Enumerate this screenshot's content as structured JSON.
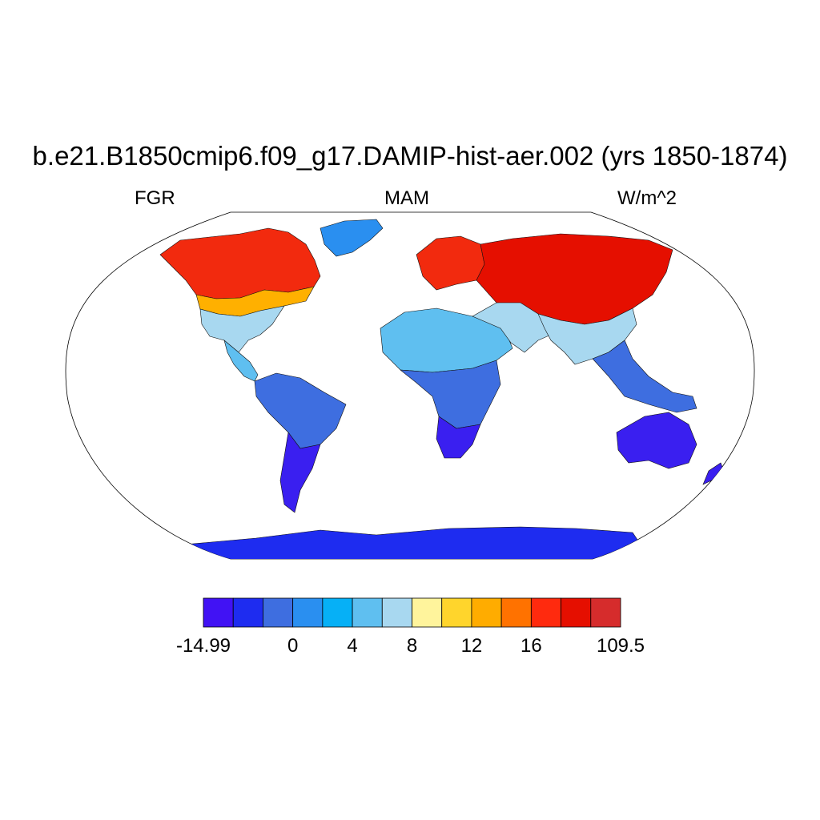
{
  "title": "b.e21.B1850cmip6.f09_g17.DAMIP-hist-aer.002 (yrs 1850-1874)",
  "subtitle_left": "FGR",
  "subtitle_center": "MAM",
  "subtitle_right": "W/m^2",
  "colors": {
    "land_regions": {
      "north_america_high": "#f22a0e",
      "north_america_mid": "#ffb000",
      "usa_south": "#a8d8f0",
      "central_america": "#5fbff0",
      "south_america": "#3e6ee0",
      "patagonia": "#3a1ff0",
      "greenland": "#2a8ff0",
      "europe": "#f22a0e",
      "north_africa": "#5fbff0",
      "africa_central": "#3e6ee0",
      "africa_south": "#3a1ff0",
      "middle_east": "#a8d8f0",
      "asia": "#e50f00",
      "south_asia": "#a8d8f0",
      "se_asia": "#3e6ee0",
      "australia": "#3a1ff0",
      "antarctica": "#1e2cf0"
    },
    "outline": "#000000"
  },
  "colorbar": {
    "colors": [
      "#4112f4",
      "#1e2cf0",
      "#3e6ee0",
      "#2a8ff0",
      "#06b0f6",
      "#5fbff0",
      "#a8d8f0",
      "#fff49c",
      "#ffd52c",
      "#ffac00",
      "#ff7200",
      "#ff2a0e",
      "#e50f00",
      "#d62c2c"
    ],
    "tick_labels": [
      {
        "label": "-14.99",
        "boundary": 0
      },
      {
        "label": "0",
        "boundary": 3
      },
      {
        "label": "4",
        "boundary": 5
      },
      {
        "label": "8",
        "boundary": 7
      },
      {
        "label": "12",
        "boundary": 9
      },
      {
        "label": "16",
        "boundary": 11
      },
      {
        "label": "109.5",
        "boundary": 14
      }
    ]
  }
}
